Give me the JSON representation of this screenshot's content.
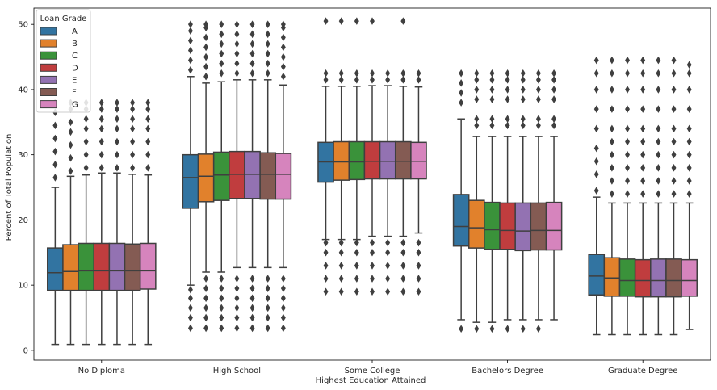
{
  "chart_data": {
    "type": "boxplot",
    "xlabel": "Highest Education Attained",
    "ylabel": "Percent of Total Population",
    "ylim": [
      -1.5,
      52.5
    ],
    "yticks": [
      0,
      10,
      20,
      30,
      40,
      50
    ],
    "ytick_labels": [
      "0",
      "10",
      "20",
      "30",
      "40",
      "50"
    ],
    "grid": false,
    "legend": {
      "title": "Loan Grade",
      "placement": "top-left"
    },
    "categories": [
      "No Diploma",
      "High School",
      "Some College",
      "Bachelors Degree",
      "Graduate Degree"
    ],
    "series": [
      {
        "name": "A",
        "color": "#3274a1",
        "stats": [
          {
            "whislo": 0.9,
            "q1": 9.2,
            "med": 11.9,
            "q3": 15.7,
            "whishi": 25.0,
            "fliers_low": [],
            "fliers_high": [
              26.5,
              28.5,
              30.5,
              32.5,
              34.5,
              36.5,
              38.0
            ]
          },
          {
            "whislo": 10.0,
            "q1": 21.8,
            "med": 26.5,
            "q3": 30.0,
            "whishi": 42.0,
            "fliers_low": [
              3.4,
              5.0,
              6.5,
              8.0,
              9.3
            ],
            "fliers_high": [
              43.0,
              44.5,
              46.0,
              47.5,
              49.0,
              50.0
            ]
          },
          {
            "whislo": 17.0,
            "q1": 25.8,
            "med": 28.9,
            "q3": 31.9,
            "whishi": 40.5,
            "fliers_low": [
              9.0,
              11.0,
              13.0,
              15.0,
              16.5
            ],
            "fliers_high": [
              41.5,
              42.5,
              50.5
            ]
          },
          {
            "whislo": 4.7,
            "q1": 16.0,
            "med": 19.0,
            "q3": 23.9,
            "whishi": 35.5,
            "fliers_low": [
              3.3
            ],
            "fliers_high": [
              38.0,
              39.5,
              41.0,
              42.5
            ]
          },
          {
            "whislo": 2.4,
            "q1": 8.5,
            "med": 11.4,
            "q3": 14.7,
            "whishi": 23.5,
            "fliers_low": [],
            "fliers_high": [
              24.5,
              27.0,
              29.0,
              31.0,
              34.0,
              37.0,
              40.0,
              42.5,
              44.5
            ]
          }
        ]
      },
      {
        "name": "B",
        "color": "#e1812c",
        "stats": [
          {
            "whislo": 0.9,
            "q1": 9.2,
            "med": 12.1,
            "q3": 16.2,
            "whishi": 26.7,
            "fliers_low": [],
            "fliers_high": [
              27.5,
              29.5,
              31.5,
              33.5,
              35.0,
              37.0,
              38.0
            ]
          },
          {
            "whislo": 12.0,
            "q1": 22.8,
            "med": 26.7,
            "q3": 30.1,
            "whishi": 41.0,
            "fliers_low": [
              3.4,
              5.0,
              6.5,
              8.0,
              9.5,
              11.0
            ],
            "fliers_high": [
              42.0,
              43.5,
              45.0,
              46.5,
              48.0,
              49.5,
              50.0
            ]
          },
          {
            "whislo": 17.0,
            "q1": 26.1,
            "med": 28.9,
            "q3": 32.0,
            "whishi": 40.5,
            "fliers_low": [
              9.0,
              11.0,
              13.0,
              15.0,
              16.5
            ],
            "fliers_high": [
              41.5,
              42.5,
              50.5
            ]
          },
          {
            "whislo": 4.3,
            "q1": 15.7,
            "med": 18.8,
            "q3": 23.0,
            "whishi": 32.8,
            "fliers_low": [
              3.3
            ],
            "fliers_high": [
              34.5,
              35.5,
              38.5,
              40.0,
              41.5,
              42.5
            ]
          },
          {
            "whislo": 2.4,
            "q1": 8.3,
            "med": 11.1,
            "q3": 14.2,
            "whishi": 22.6,
            "fliers_low": [],
            "fliers_high": [
              24.0,
              26.0,
              28.0,
              30.0,
              32.0,
              34.0,
              37.0,
              40.0,
              42.5,
              44.5
            ]
          }
        ]
      },
      {
        "name": "C",
        "color": "#3a923a",
        "stats": [
          {
            "whislo": 0.9,
            "q1": 9.2,
            "med": 12.2,
            "q3": 16.4,
            "whishi": 26.9,
            "fliers_low": [],
            "fliers_high": [
              28.0,
              30.0,
              32.0,
              34.0,
              35.5,
              37.0,
              38.0
            ]
          },
          {
            "whislo": 12.0,
            "q1": 23.0,
            "med": 26.9,
            "q3": 30.4,
            "whishi": 41.2,
            "fliers_low": [
              3.4,
              5.0,
              6.5,
              8.0,
              9.5,
              11.0
            ],
            "fliers_high": [
              42.5,
              44.0,
              45.5,
              47.0,
              48.5,
              50.0
            ]
          },
          {
            "whislo": 17.0,
            "q1": 26.2,
            "med": 28.9,
            "q3": 32.0,
            "whishi": 40.5,
            "fliers_low": [
              9.0,
              11.0,
              13.0,
              15.0,
              16.5
            ],
            "fliers_high": [
              41.5,
              42.5,
              50.5
            ]
          },
          {
            "whislo": 4.3,
            "q1": 15.5,
            "med": 18.5,
            "q3": 22.7,
            "whishi": 32.8,
            "fliers_low": [
              3.3
            ],
            "fliers_high": [
              34.5,
              35.5,
              38.5,
              40.0,
              41.5,
              42.5
            ]
          },
          {
            "whislo": 2.4,
            "q1": 8.3,
            "med": 10.7,
            "q3": 14.0,
            "whishi": 22.6,
            "fliers_low": [],
            "fliers_high": [
              24.0,
              26.0,
              28.0,
              30.0,
              32.0,
              34.0,
              37.0,
              40.0,
              42.5,
              44.5
            ]
          }
        ]
      },
      {
        "name": "D",
        "color": "#c03d3e",
        "stats": [
          {
            "whislo": 0.9,
            "q1": 9.2,
            "med": 12.2,
            "q3": 16.4,
            "whishi": 27.2,
            "fliers_low": [],
            "fliers_high": [
              28.0,
              30.0,
              32.0,
              34.0,
              35.5,
              37.0,
              38.0
            ]
          },
          {
            "whislo": 12.7,
            "q1": 23.3,
            "med": 27.0,
            "q3": 30.5,
            "whishi": 41.5,
            "fliers_low": [
              3.4,
              5.0,
              6.5,
              8.0,
              9.5,
              11.0
            ],
            "fliers_high": [
              42.5,
              44.0,
              45.5,
              47.0,
              48.5,
              50.0
            ]
          },
          {
            "whislo": 17.5,
            "q1": 26.3,
            "med": 29.0,
            "q3": 32.0,
            "whishi": 40.6,
            "fliers_low": [
              9.0,
              11.0,
              13.0,
              15.0,
              16.5
            ],
            "fliers_high": [
              41.5,
              42.5,
              50.5
            ]
          },
          {
            "whislo": 4.7,
            "q1": 15.5,
            "med": 18.4,
            "q3": 22.6,
            "whishi": 32.8,
            "fliers_low": [
              3.3
            ],
            "fliers_high": [
              34.5,
              35.5,
              38.5,
              40.0,
              41.5,
              42.5
            ]
          },
          {
            "whislo": 2.4,
            "q1": 8.2,
            "med": 10.7,
            "q3": 13.9,
            "whishi": 22.6,
            "fliers_low": [],
            "fliers_high": [
              24.0,
              26.0,
              28.0,
              30.0,
              32.0,
              34.0,
              37.0,
              40.0,
              42.5,
              44.5
            ]
          }
        ]
      },
      {
        "name": "E",
        "color": "#9372b2",
        "stats": [
          {
            "whislo": 0.9,
            "q1": 9.2,
            "med": 12.2,
            "q3": 16.4,
            "whishi": 27.2,
            "fliers_low": [],
            "fliers_high": [
              28.0,
              30.0,
              32.0,
              34.0,
              35.5,
              37.0,
              38.0
            ]
          },
          {
            "whislo": 12.7,
            "q1": 23.3,
            "med": 27.0,
            "q3": 30.5,
            "whishi": 41.5,
            "fliers_low": [
              3.4,
              5.0,
              6.5,
              8.0,
              9.5,
              11.0
            ],
            "fliers_high": [
              42.5,
              44.0,
              45.5,
              47.0,
              48.5,
              50.0
            ]
          },
          {
            "whislo": 17.5,
            "q1": 26.3,
            "med": 29.0,
            "q3": 32.0,
            "whishi": 40.6,
            "fliers_low": [
              9.0,
              11.0,
              13.0,
              15.0,
              16.5
            ],
            "fliers_high": [
              41.5,
              42.5
            ]
          },
          {
            "whislo": 4.7,
            "q1": 15.3,
            "med": 18.3,
            "q3": 22.6,
            "whishi": 32.8,
            "fliers_low": [
              3.3
            ],
            "fliers_high": [
              34.5,
              35.5,
              38.5,
              40.0,
              41.5,
              42.5
            ]
          },
          {
            "whislo": 2.4,
            "q1": 8.2,
            "med": 10.7,
            "q3": 14.0,
            "whishi": 22.6,
            "fliers_low": [],
            "fliers_high": [
              24.0,
              26.0,
              28.0,
              30.0,
              32.0,
              34.0,
              37.0,
              40.0,
              42.5,
              44.5
            ]
          }
        ]
      },
      {
        "name": "F",
        "color": "#845b53",
        "stats": [
          {
            "whislo": 0.9,
            "q1": 9.2,
            "med": 12.2,
            "q3": 16.3,
            "whishi": 27.0,
            "fliers_low": [],
            "fliers_high": [
              28.0,
              30.0,
              32.0,
              34.0,
              35.5,
              37.0,
              38.0
            ]
          },
          {
            "whislo": 12.7,
            "q1": 23.2,
            "med": 27.0,
            "q3": 30.3,
            "whishi": 41.5,
            "fliers_low": [
              3.4,
              5.0,
              6.5,
              8.0,
              9.5,
              11.0
            ],
            "fliers_high": [
              42.5,
              44.0,
              45.5,
              47.0,
              48.5,
              50.0
            ]
          },
          {
            "whislo": 17.5,
            "q1": 26.3,
            "med": 29.0,
            "q3": 32.0,
            "whishi": 40.5,
            "fliers_low": [
              9.0,
              11.0,
              13.0,
              15.0,
              16.5
            ],
            "fliers_high": [
              41.5,
              42.5,
              50.5
            ]
          },
          {
            "whislo": 4.7,
            "q1": 15.4,
            "med": 18.4,
            "q3": 22.6,
            "whishi": 32.8,
            "fliers_low": [
              3.3
            ],
            "fliers_high": [
              34.5,
              35.5,
              38.5,
              40.0,
              41.5,
              42.5
            ]
          },
          {
            "whislo": 2.4,
            "q1": 8.2,
            "med": 10.7,
            "q3": 14.0,
            "whishi": 22.6,
            "fliers_low": [],
            "fliers_high": [
              24.0,
              26.0,
              28.0,
              30.0,
              32.0,
              34.0,
              37.0,
              40.0,
              42.5,
              44.5
            ]
          }
        ]
      },
      {
        "name": "G",
        "color": "#d684bd",
        "stats": [
          {
            "whislo": 0.9,
            "q1": 9.4,
            "med": 12.2,
            "q3": 16.4,
            "whishi": 26.9,
            "fliers_low": [],
            "fliers_high": [
              28.0,
              30.0,
              32.0,
              34.0,
              35.5,
              37.0,
              38.0
            ]
          },
          {
            "whislo": 12.7,
            "q1": 23.2,
            "med": 27.0,
            "q3": 30.2,
            "whishi": 40.7,
            "fliers_low": [
              3.4,
              5.0,
              6.5,
              8.0,
              9.5,
              11.0
            ],
            "fliers_high": [
              42.0,
              43.5,
              45.0,
              46.5,
              48.0,
              49.5,
              50.0
            ]
          },
          {
            "whislo": 18.0,
            "q1": 26.3,
            "med": 29.0,
            "q3": 31.9,
            "whishi": 40.4,
            "fliers_low": [
              9.0,
              11.0,
              13.0,
              15.0,
              16.5
            ],
            "fliers_high": [
              41.5,
              42.5
            ]
          },
          {
            "whislo": 4.7,
            "q1": 15.4,
            "med": 18.4,
            "q3": 22.7,
            "whishi": 32.8,
            "fliers_low": [],
            "fliers_high": [
              34.5,
              35.5,
              38.5,
              40.0,
              41.5,
              42.5
            ]
          },
          {
            "whislo": 3.2,
            "q1": 8.3,
            "med": 10.7,
            "q3": 13.9,
            "whishi": 22.6,
            "fliers_low": [],
            "fliers_high": [
              24.0,
              26.0,
              28.0,
              30.0,
              32.0,
              34.0,
              37.0,
              40.0,
              42.5,
              43.8
            ]
          }
        ]
      }
    ]
  }
}
